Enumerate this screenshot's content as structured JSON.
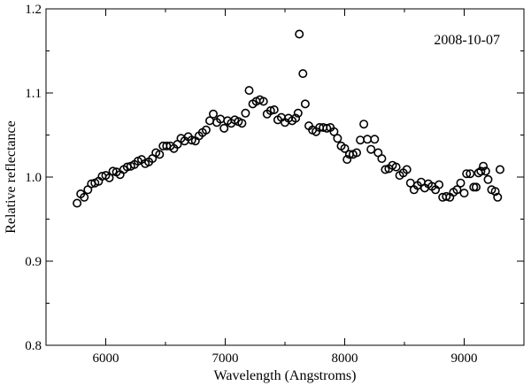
{
  "chart_data": {
    "type": "scatter",
    "title": "",
    "annotation": "2008-10-07",
    "xlabel": "Wavelength (Angstroms)",
    "ylabel": "Relative reflectance",
    "xlim": [
      5500,
      9500
    ],
    "ylim": [
      0.8,
      1.2
    ],
    "xticks": [
      6000,
      7000,
      8000,
      9000
    ],
    "yticks": [
      0.8,
      0.9,
      1.0,
      1.1,
      1.2
    ],
    "xtick_labels": [
      "6000",
      "7000",
      "8000",
      "9000"
    ],
    "ytick_labels": [
      "0.8",
      "0.9",
      "1.0",
      "1.1",
      "1.2"
    ],
    "grid": false,
    "marker": "open-circle",
    "series": [
      {
        "name": "reflectance",
        "points": [
          [
            5760,
            0.969
          ],
          [
            5790,
            0.98
          ],
          [
            5820,
            0.976
          ],
          [
            5850,
            0.985
          ],
          [
            5880,
            0.992
          ],
          [
            5910,
            0.993
          ],
          [
            5940,
            0.995
          ],
          [
            5970,
            1.001
          ],
          [
            6000,
            1.002
          ],
          [
            6030,
            0.999
          ],
          [
            6060,
            1.007
          ],
          [
            6090,
            1.006
          ],
          [
            6120,
            1.003
          ],
          [
            6150,
            1.009
          ],
          [
            6180,
            1.012
          ],
          [
            6210,
            1.013
          ],
          [
            6240,
            1.015
          ],
          [
            6270,
            1.019
          ],
          [
            6300,
            1.021
          ],
          [
            6330,
            1.016
          ],
          [
            6360,
            1.018
          ],
          [
            6390,
            1.022
          ],
          [
            6420,
            1.029
          ],
          [
            6450,
            1.027
          ],
          [
            6480,
            1.037
          ],
          [
            6510,
            1.037
          ],
          [
            6540,
            1.037
          ],
          [
            6570,
            1.034
          ],
          [
            6600,
            1.039
          ],
          [
            6630,
            1.046
          ],
          [
            6660,
            1.043
          ],
          [
            6690,
            1.048
          ],
          [
            6720,
            1.044
          ],
          [
            6750,
            1.043
          ],
          [
            6780,
            1.049
          ],
          [
            6810,
            1.053
          ],
          [
            6840,
            1.056
          ],
          [
            6870,
            1.067
          ],
          [
            6900,
            1.075
          ],
          [
            6930,
            1.065
          ],
          [
            6960,
            1.069
          ],
          [
            6990,
            1.058
          ],
          [
            7020,
            1.067
          ],
          [
            7050,
            1.064
          ],
          [
            7080,
            1.068
          ],
          [
            7110,
            1.066
          ],
          [
            7140,
            1.064
          ],
          [
            7170,
            1.076
          ],
          [
            7200,
            1.103
          ],
          [
            7230,
            1.087
          ],
          [
            7260,
            1.09
          ],
          [
            7290,
            1.092
          ],
          [
            7320,
            1.09
          ],
          [
            7350,
            1.075
          ],
          [
            7380,
            1.079
          ],
          [
            7410,
            1.08
          ],
          [
            7440,
            1.068
          ],
          [
            7470,
            1.071
          ],
          [
            7500,
            1.065
          ],
          [
            7530,
            1.07
          ],
          [
            7560,
            1.067
          ],
          [
            7590,
            1.07
          ],
          [
            7610,
            1.076
          ],
          [
            7620,
            1.17
          ],
          [
            7650,
            1.123
          ],
          [
            7670,
            1.087
          ],
          [
            7700,
            1.061
          ],
          [
            7730,
            1.056
          ],
          [
            7760,
            1.054
          ],
          [
            7790,
            1.059
          ],
          [
            7820,
            1.059
          ],
          [
            7850,
            1.058
          ],
          [
            7880,
            1.059
          ],
          [
            7910,
            1.054
          ],
          [
            7940,
            1.046
          ],
          [
            7970,
            1.037
          ],
          [
            8000,
            1.034
          ],
          [
            8020,
            1.021
          ],
          [
            8040,
            1.027
          ],
          [
            8070,
            1.027
          ],
          [
            8100,
            1.029
          ],
          [
            8130,
            1.044
          ],
          [
            8160,
            1.063
          ],
          [
            8190,
            1.045
          ],
          [
            8220,
            1.033
          ],
          [
            8250,
            1.045
          ],
          [
            8280,
            1.029
          ],
          [
            8310,
            1.022
          ],
          [
            8340,
            1.009
          ],
          [
            8370,
            1.01
          ],
          [
            8400,
            1.014
          ],
          [
            8430,
            1.012
          ],
          [
            8460,
            1.002
          ],
          [
            8490,
            1.005
          ],
          [
            8520,
            1.009
          ],
          [
            8550,
            0.993
          ],
          [
            8580,
            0.985
          ],
          [
            8610,
            0.99
          ],
          [
            8640,
            0.994
          ],
          [
            8670,
            0.987
          ],
          [
            8700,
            0.992
          ],
          [
            8730,
            0.989
          ],
          [
            8760,
            0.985
          ],
          [
            8790,
            0.991
          ],
          [
            8820,
            0.976
          ],
          [
            8850,
            0.977
          ],
          [
            8880,
            0.976
          ],
          [
            8910,
            0.982
          ],
          [
            8940,
            0.985
          ],
          [
            8970,
            0.993
          ],
          [
            9000,
            0.981
          ],
          [
            9020,
            1.004
          ],
          [
            9050,
            1.004
          ],
          [
            9080,
            0.988
          ],
          [
            9100,
            0.988
          ],
          [
            9120,
            1.005
          ],
          [
            9140,
            1.007
          ],
          [
            9160,
            1.013
          ],
          [
            9180,
            1.007
          ],
          [
            9200,
            0.997
          ],
          [
            9230,
            0.985
          ],
          [
            9260,
            0.983
          ],
          [
            9280,
            0.976
          ],
          [
            9300,
            1.009
          ]
        ]
      }
    ]
  }
}
